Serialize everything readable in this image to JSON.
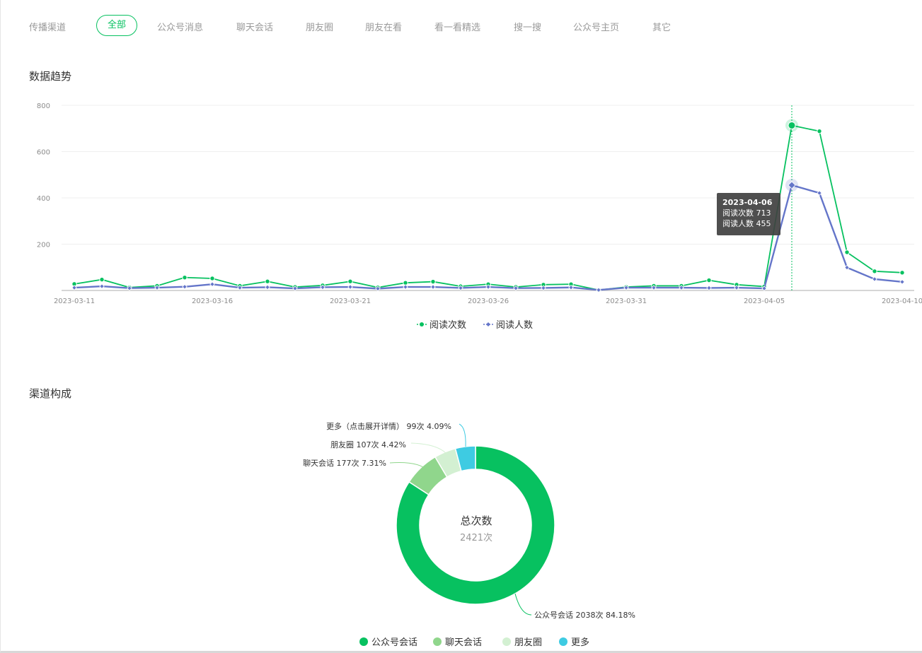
{
  "tabs": {
    "label": "传播渠道",
    "items": [
      "全部",
      "公众号消息",
      "聊天会话",
      "朋友圈",
      "朋友在看",
      "看一看精选",
      "搜一搜",
      "公众号主页",
      "其它"
    ],
    "active_index": 0
  },
  "trend": {
    "title": "数据趋势",
    "tooltip": {
      "date": "2023-04-06",
      "line1": "阅读次数 713",
      "line2": "阅读人数 455"
    }
  },
  "composition": {
    "title": "渠道构成",
    "center_title": "总次数",
    "center_value": "2421次"
  },
  "colors": {
    "accent": "#07c160",
    "series_reads": "#07c160",
    "series_readers": "#6475c9",
    "slice_chat": "#90d68c",
    "slice_moments": "#d3f0d2",
    "slice_more": "#3ecbe2"
  },
  "chart_data": [
    {
      "type": "line",
      "title": "数据趋势",
      "x": [
        "2023-03-11",
        "2023-03-12",
        "2023-03-13",
        "2023-03-14",
        "2023-03-15",
        "2023-03-16",
        "2023-03-17",
        "2023-03-18",
        "2023-03-19",
        "2023-03-20",
        "2023-03-21",
        "2023-03-22",
        "2023-03-23",
        "2023-03-24",
        "2023-03-25",
        "2023-03-26",
        "2023-03-27",
        "2023-03-28",
        "2023-03-29",
        "2023-03-30",
        "2023-03-31",
        "2023-04-01",
        "2023-04-02",
        "2023-04-03",
        "2023-04-04",
        "2023-04-05",
        "2023-04-06",
        "2023-04-07",
        "2023-04-08",
        "2023-04-09",
        "2023-04-10"
      ],
      "x_tick_labels": [
        "2023-03-11",
        "2023-03-16",
        "2023-03-21",
        "2023-03-26",
        "2023-03-31",
        "2023-04-05",
        "2023-04-10"
      ],
      "series": [
        {
          "name": "阅读次数",
          "values": [
            28,
            47,
            13,
            20,
            56,
            52,
            20,
            39,
            15,
            22,
            39,
            13,
            33,
            38,
            18,
            27,
            15,
            25,
            27,
            2,
            15,
            20,
            20,
            44,
            25,
            17,
            713,
            688,
            165,
            83,
            77
          ]
        },
        {
          "name": "阅读人数",
          "values": [
            12,
            18,
            10,
            12,
            16,
            27,
            12,
            14,
            9,
            14,
            15,
            8,
            15,
            15,
            11,
            15,
            10,
            11,
            13,
            2,
            12,
            12,
            12,
            11,
            12,
            9,
            455,
            421,
            99,
            49,
            37
          ]
        }
      ],
      "ylim": [
        0,
        800
      ],
      "yticks": [
        200,
        400,
        600,
        800
      ],
      "grid": true,
      "legend": "bottom",
      "highlight_index": 26
    },
    {
      "type": "pie",
      "title": "渠道构成",
      "slices": [
        {
          "name": "公众号会话",
          "value": 2038,
          "label": "公众号会话 2038次 84.18%"
        },
        {
          "name": "聊天会话",
          "value": 177,
          "label": "聊天会话 177次 7.31%"
        },
        {
          "name": "朋友圈",
          "value": 107,
          "label": "朋友圈 107次 4.42%"
        },
        {
          "name": "更多",
          "value": 99,
          "label": "更多（点击展开详情） 99次 4.09%"
        }
      ],
      "legend": "bottom"
    }
  ]
}
